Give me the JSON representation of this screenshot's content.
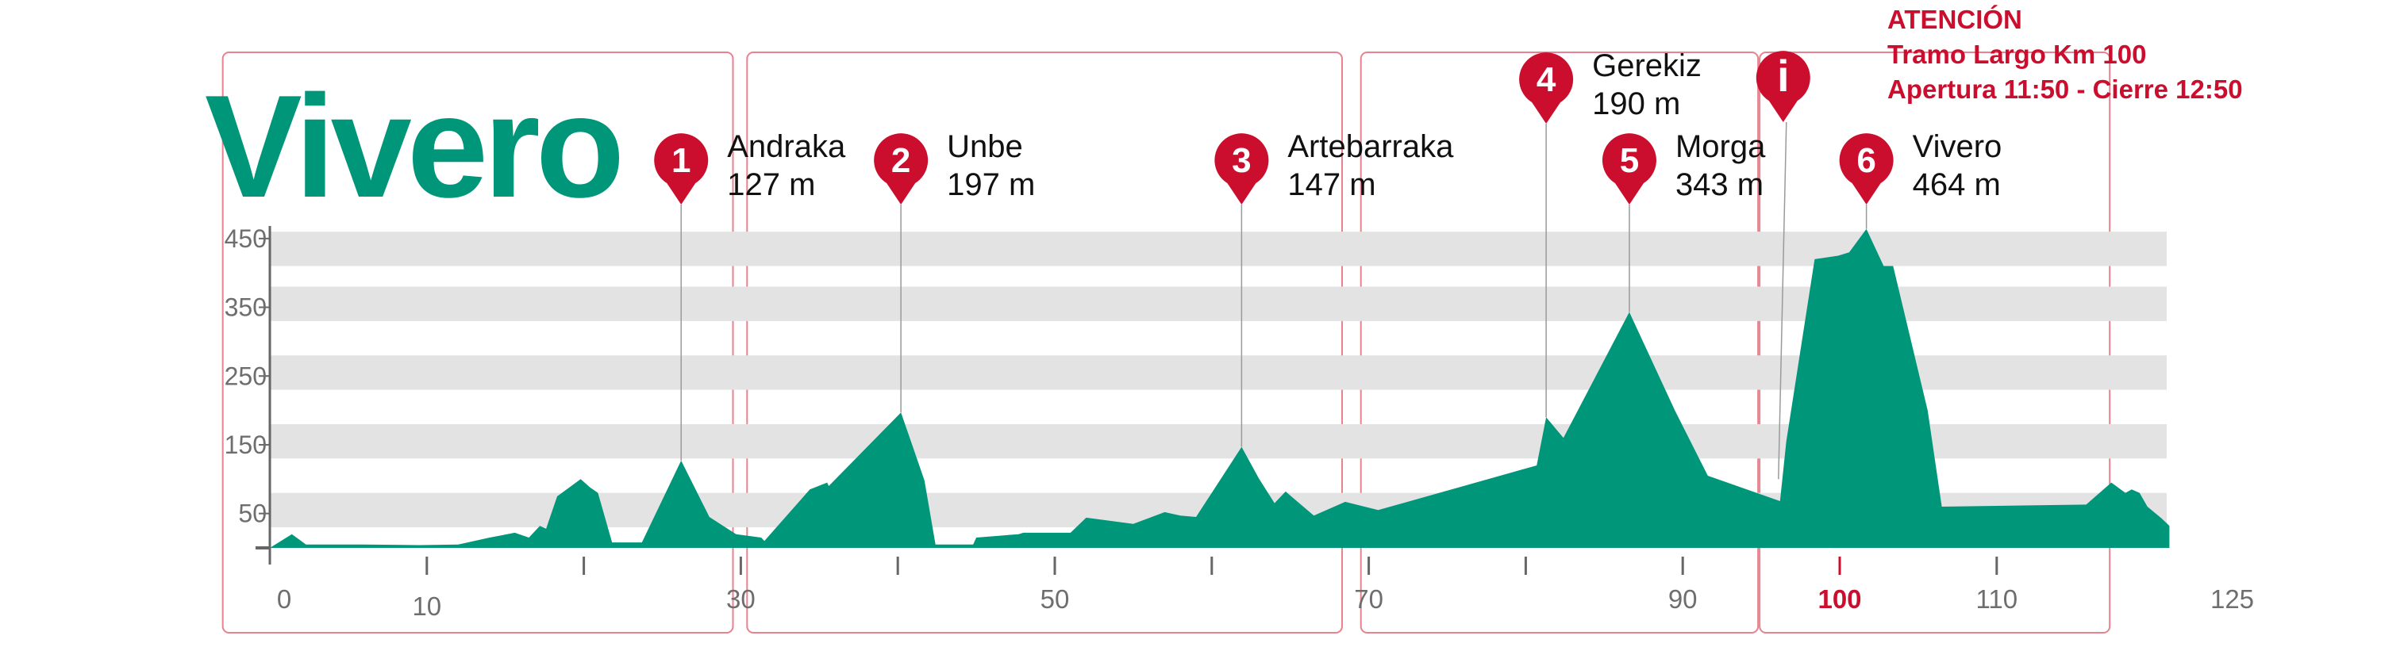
{
  "title": "Vivero",
  "attention": {
    "line1": "ATENCIÓN",
    "line2": "Tramo Largo Km 100",
    "line3": "Apertura 11:50 - Cierre 12:50",
    "icon": "i"
  },
  "colors": {
    "accent": "#00967A",
    "marker": "#CC0E2E",
    "band": "#E4E3E4",
    "section_border": "#E8828F",
    "axis": "#666666",
    "tick_text": "#6E6E6E"
  },
  "chart_data": {
    "type": "area",
    "title": "Vivero",
    "xlabel": "",
    "ylabel": "",
    "xlim": [
      0,
      125
    ],
    "ylim": [
      0,
      450
    ],
    "grid": "horizontal bands",
    "x_ticks": [
      {
        "value": 0,
        "label": "0"
      },
      {
        "value": 10,
        "label": "10"
      },
      {
        "value": 20,
        "label": ""
      },
      {
        "value": 30,
        "label": "30"
      },
      {
        "value": 40,
        "label": ""
      },
      {
        "value": 50,
        "label": "50"
      },
      {
        "value": 60,
        "label": ""
      },
      {
        "value": 70,
        "label": "70"
      },
      {
        "value": 80,
        "label": ""
      },
      {
        "value": 90,
        "label": "90"
      },
      {
        "value": 100,
        "label": "100",
        "highlight": true
      },
      {
        "value": 110,
        "label": "110"
      },
      {
        "value": 125,
        "label": "125"
      }
    ],
    "y_ticks": [
      {
        "value": 50,
        "label": "50"
      },
      {
        "value": 150,
        "label": "150"
      },
      {
        "value": 250,
        "label": "250"
      },
      {
        "value": 350,
        "label": "350"
      },
      {
        "value": 450,
        "label": "450"
      }
    ],
    "bands": [
      [
        30,
        80
      ],
      [
        130,
        180
      ],
      [
        230,
        280
      ],
      [
        330,
        380
      ],
      [
        410,
        460
      ]
    ],
    "sections": [
      [
        -3,
        29.5
      ],
      [
        30.4,
        68.3
      ],
      [
        69.5,
        94.8
      ],
      [
        94.9,
        117.2
      ]
    ],
    "profile": [
      {
        "x": 0,
        "y": 0
      },
      {
        "x": 1.4,
        "y": 20
      },
      {
        "x": 2.3,
        "y": 5
      },
      {
        "x": 6,
        "y": 5
      },
      {
        "x": 9.5,
        "y": 4
      },
      {
        "x": 12,
        "y": 5
      },
      {
        "x": 14,
        "y": 15
      },
      {
        "x": 15.6,
        "y": 22
      },
      {
        "x": 16.5,
        "y": 15
      },
      {
        "x": 17.2,
        "y": 32
      },
      {
        "x": 17.6,
        "y": 28
      },
      {
        "x": 18.3,
        "y": 75
      },
      {
        "x": 19.8,
        "y": 100
      },
      {
        "x": 20.4,
        "y": 88
      },
      {
        "x": 20.9,
        "y": 80
      },
      {
        "x": 21.8,
        "y": 8
      },
      {
        "x": 23.7,
        "y": 8
      },
      {
        "x": 26.2,
        "y": 127
      },
      {
        "x": 28,
        "y": 45
      },
      {
        "x": 29.7,
        "y": 20
      },
      {
        "x": 31.3,
        "y": 15
      },
      {
        "x": 31.5,
        "y": 10
      },
      {
        "x": 34.4,
        "y": 85
      },
      {
        "x": 35.5,
        "y": 95
      },
      {
        "x": 35.6,
        "y": 90
      },
      {
        "x": 40.2,
        "y": 197
      },
      {
        "x": 41.7,
        "y": 98
      },
      {
        "x": 42.4,
        "y": 5
      },
      {
        "x": 44.8,
        "y": 5
      },
      {
        "x": 45,
        "y": 15
      },
      {
        "x": 47.7,
        "y": 20
      },
      {
        "x": 48,
        "y": 22
      },
      {
        "x": 51,
        "y": 22
      },
      {
        "x": 52,
        "y": 44
      },
      {
        "x": 55,
        "y": 35
      },
      {
        "x": 57,
        "y": 52
      },
      {
        "x": 58,
        "y": 47
      },
      {
        "x": 59,
        "y": 45
      },
      {
        "x": 61.9,
        "y": 147
      },
      {
        "x": 63,
        "y": 101
      },
      {
        "x": 64,
        "y": 65
      },
      {
        "x": 64.7,
        "y": 82
      },
      {
        "x": 66.5,
        "y": 47
      },
      {
        "x": 68.5,
        "y": 67
      },
      {
        "x": 70.6,
        "y": 55
      },
      {
        "x": 80.7,
        "y": 120
      },
      {
        "x": 81.3,
        "y": 190
      },
      {
        "x": 82.4,
        "y": 160
      },
      {
        "x": 86.6,
        "y": 343
      },
      {
        "x": 89.5,
        "y": 200
      },
      {
        "x": 91.6,
        "y": 105
      },
      {
        "x": 96.2,
        "y": 68
      },
      {
        "x": 96.6,
        "y": 155
      },
      {
        "x": 98.4,
        "y": 420
      },
      {
        "x": 99.9,
        "y": 425
      },
      {
        "x": 100.6,
        "y": 430
      },
      {
        "x": 101.7,
        "y": 464
      },
      {
        "x": 102.8,
        "y": 410
      },
      {
        "x": 103.4,
        "y": 410
      },
      {
        "x": 105.6,
        "y": 200
      },
      {
        "x": 106.5,
        "y": 60
      },
      {
        "x": 115.7,
        "y": 63
      },
      {
        "x": 117.3,
        "y": 95
      },
      {
        "x": 118.2,
        "y": 80
      },
      {
        "x": 118.6,
        "y": 85
      },
      {
        "x": 119.1,
        "y": 80
      },
      {
        "x": 119.6,
        "y": 60
      },
      {
        "x": 120.5,
        "y": 43
      },
      {
        "x": 121,
        "y": 32
      },
      {
        "x": 121,
        "y": 0
      }
    ],
    "markers": [
      {
        "number": "1",
        "name": "Andraka",
        "elevation": "127 m",
        "x": 26.2,
        "y": 127
      },
      {
        "number": "2",
        "name": "Unbe",
        "elevation": "197 m",
        "x": 40.2,
        "y": 197
      },
      {
        "number": "3",
        "name": "Artebarraka",
        "elevation": "147 m",
        "x": 61.9,
        "y": 147
      },
      {
        "number": "4",
        "name": "Gerekiz",
        "elevation": "190 m",
        "x": 81.3,
        "y": 190
      },
      {
        "number": "5",
        "name": "Morga",
        "elevation": "343 m",
        "x": 86.6,
        "y": 343
      },
      {
        "number": "6",
        "name": "Vivero",
        "elevation": "464 m",
        "x": 101.7,
        "y": 464
      }
    ],
    "info_marker": {
      "x": 96.4
    }
  }
}
